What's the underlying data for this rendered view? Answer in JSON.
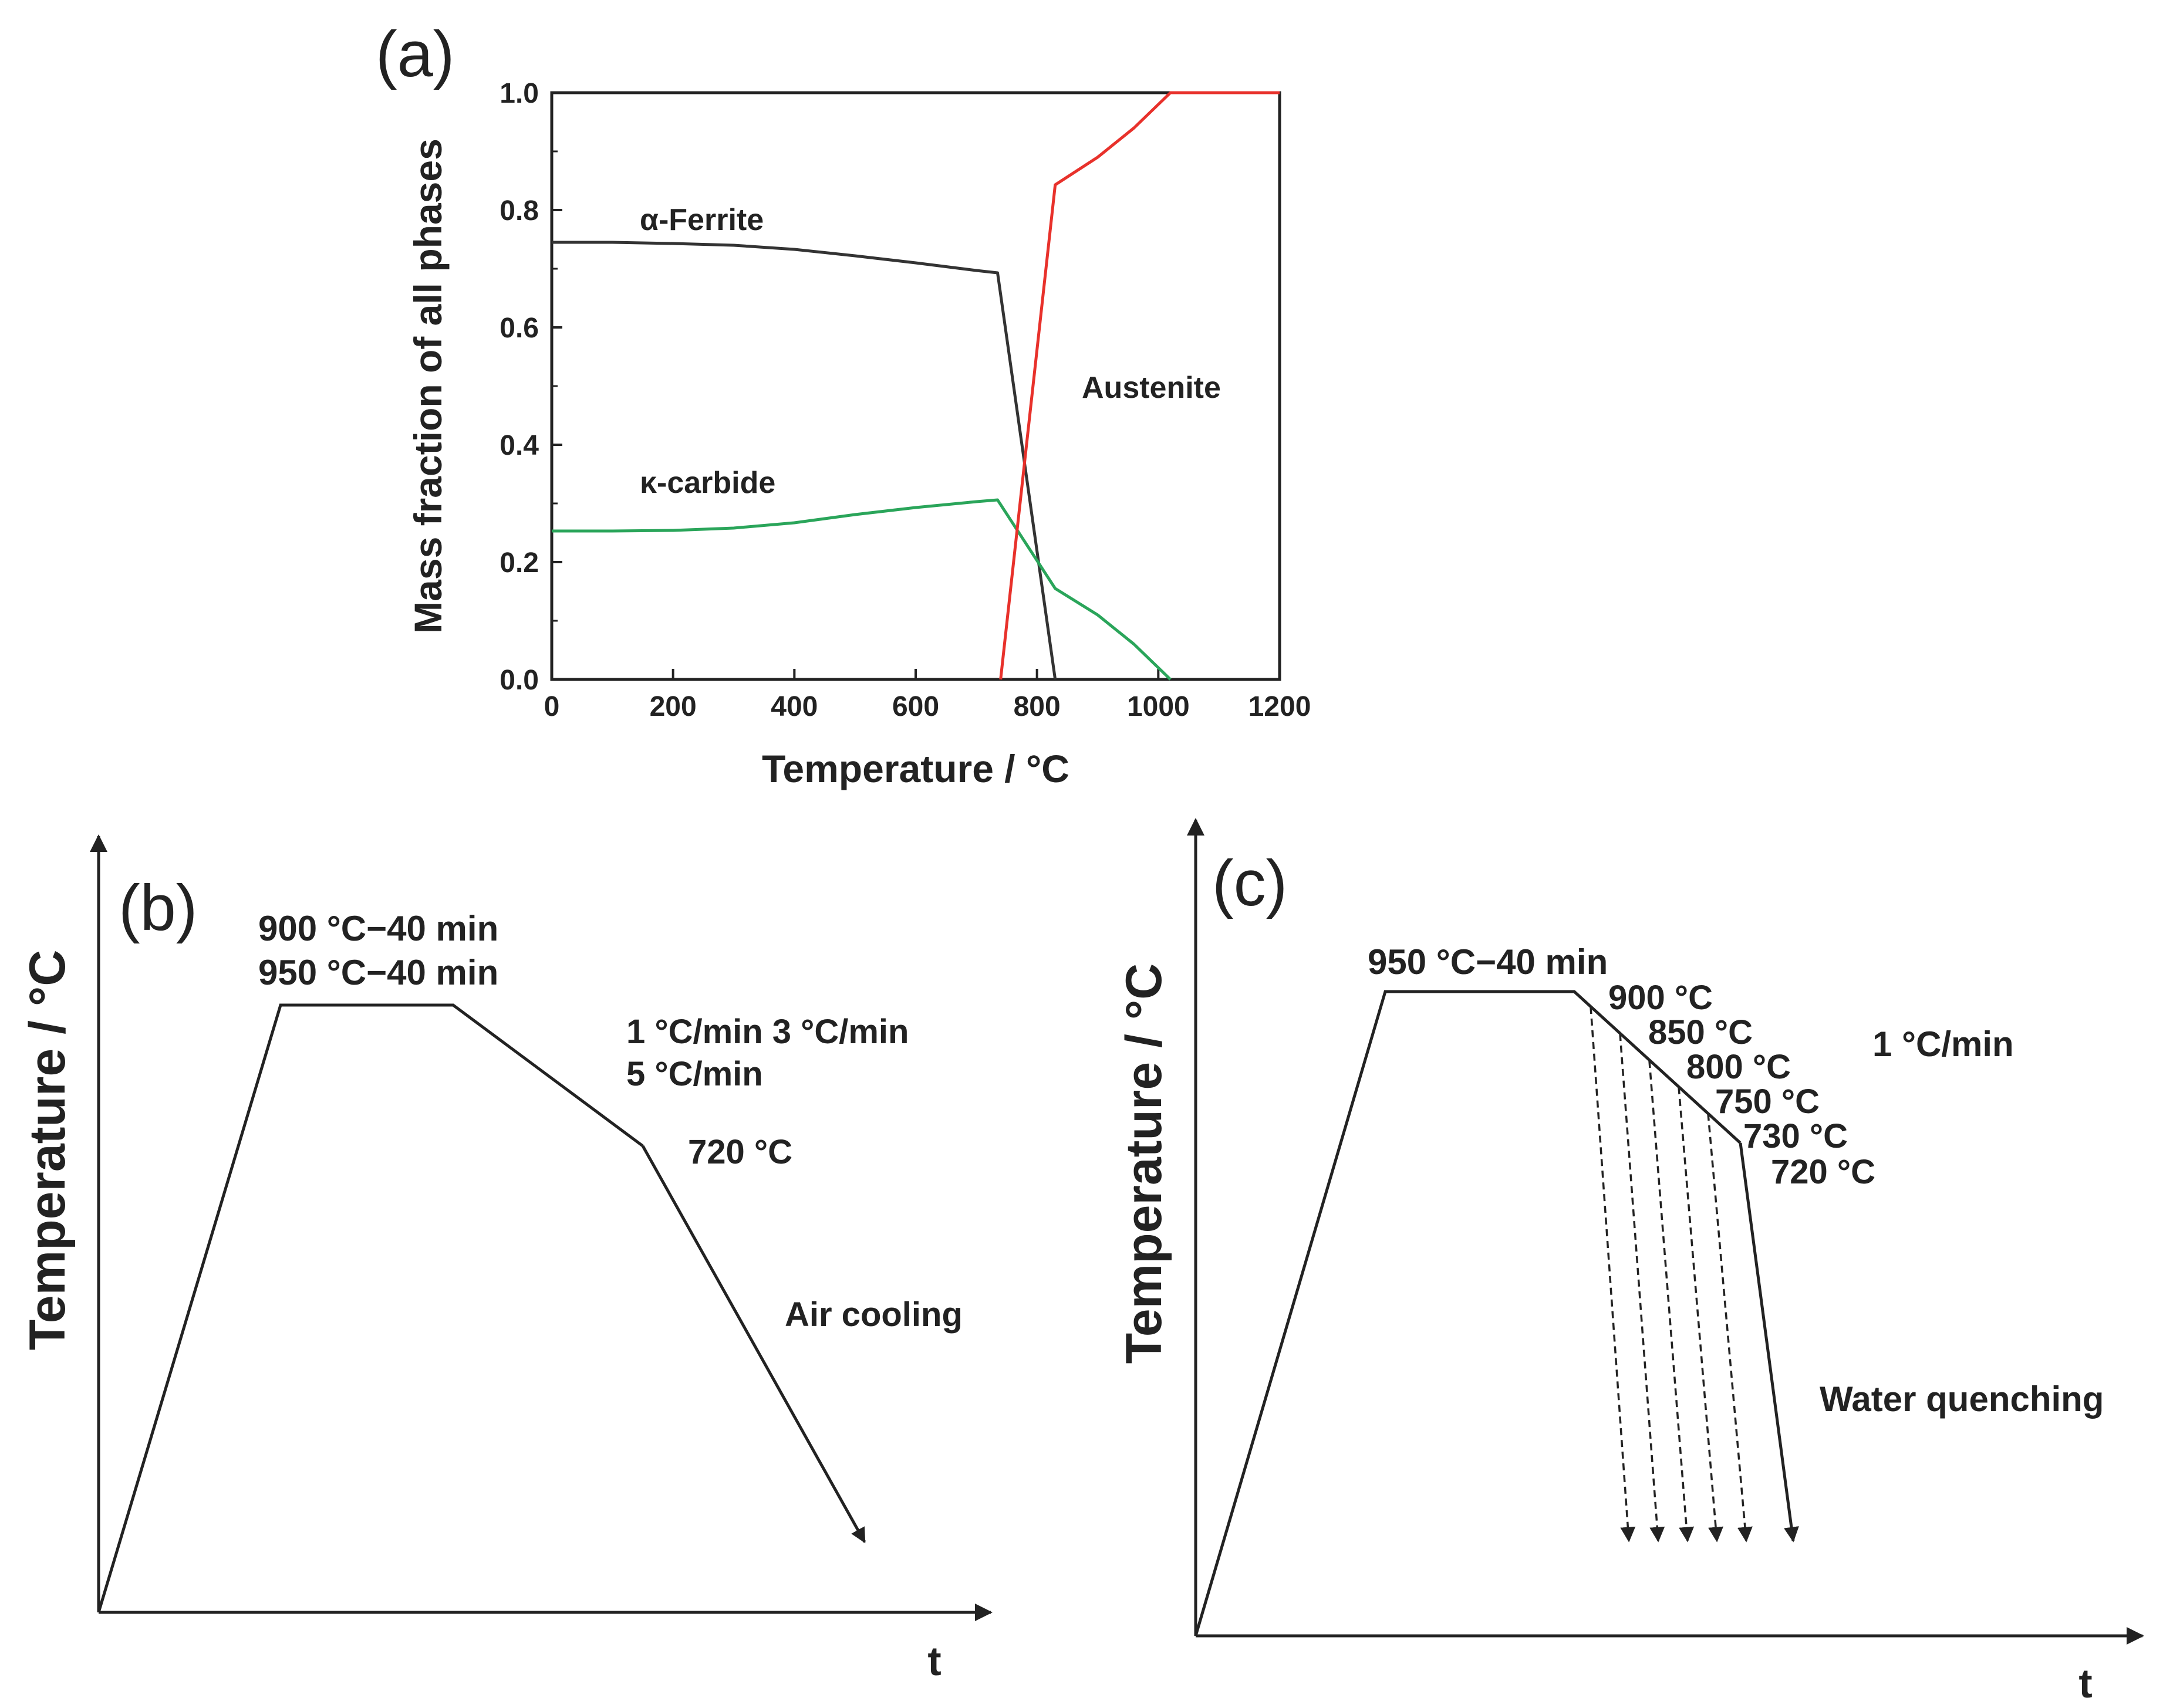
{
  "figure": {
    "panel_a": {
      "label": "(a)",
      "chart_data": {
        "type": "line",
        "title": "",
        "xlabel": "Temperature / °C",
        "ylabel": "Mass fraction of all phases",
        "xlim": [
          0,
          1200
        ],
        "ylim": [
          0,
          1.0
        ],
        "xticks": [
          0,
          200,
          400,
          600,
          800,
          1000,
          1200
        ],
        "yticks": [
          0.0,
          0.2,
          0.4,
          0.6,
          0.8,
          1.0
        ],
        "xtick_labels": [
          "0",
          "200",
          "400",
          "600",
          "800",
          "1000",
          "1200"
        ],
        "ytick_labels": [
          "0.0",
          "0.2",
          "0.4",
          "0.6",
          "0.8",
          "1.0"
        ],
        "series": [
          {
            "name": "α-Ferrite",
            "color": "#333333",
            "x": [
              0,
              100,
              200,
              300,
              400,
              500,
              600,
              700,
              735,
              830
            ],
            "y": [
              0.745,
              0.745,
              0.743,
              0.74,
              0.733,
              0.722,
              0.71,
              0.697,
              0.693,
              0.0
            ]
          },
          {
            "name": "κ-carbide",
            "color": "#2aa55a",
            "x": [
              0,
              100,
              200,
              300,
              400,
              500,
              600,
              700,
              735,
              830,
              900,
              960,
              1020
            ],
            "y": [
              0.253,
              0.253,
              0.254,
              0.258,
              0.267,
              0.281,
              0.293,
              0.303,
              0.306,
              0.155,
              0.11,
              0.06,
              0.0
            ]
          },
          {
            "name": "Austenite",
            "color": "#e8312b",
            "x": [
              740,
              830,
              900,
              960,
              1020,
              1100,
              1200
            ],
            "y": [
              0.0,
              0.843,
              0.89,
              0.94,
              1.0,
              1.0,
              1.0
            ]
          }
        ]
      },
      "annotations": {
        "ferrite": "α-Ferrite",
        "austenite": "Austenite",
        "carbide": "κ-carbide"
      }
    },
    "panel_b": {
      "label": "(b)",
      "ylabel": "Temperature / °C",
      "xlabel": "t",
      "hold_line1": "900 °C−40 min",
      "hold_line2": "950 °C−40 min",
      "rates_line1": "1 °C/min  3 °C/min",
      "rates_line2": "5 °C/min",
      "end_temp": "720 °C",
      "cooling": "Air cooling"
    },
    "panel_c": {
      "label": "(c)",
      "ylabel": "Temperature / °C",
      "xlabel": "t",
      "hold": "950 °C−40 min",
      "rate": "1 °C/min",
      "quench_temps": [
        "900 °C",
        "850 °C",
        "800 °C",
        "750 °C",
        "730 °C",
        "720 °C"
      ],
      "quench": "Water quenching"
    }
  }
}
